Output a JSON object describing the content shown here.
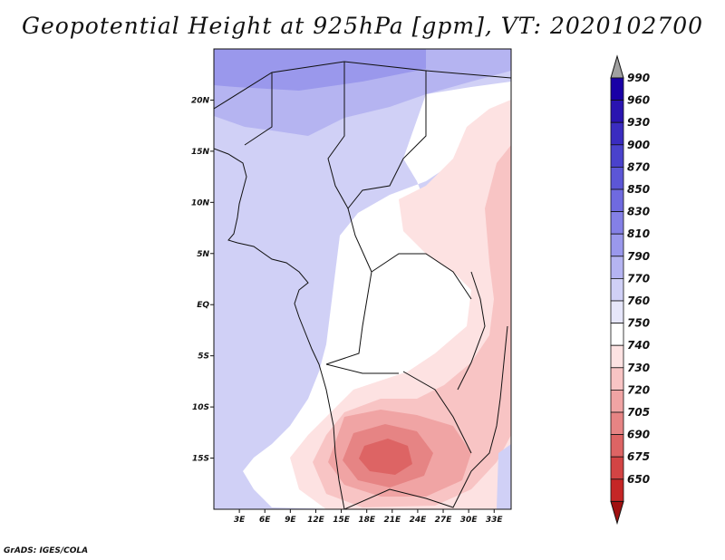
{
  "title": "Geopotential Height at 925hPa [gpm], VT: 2020102700",
  "credit": "GrADS: IGES/COLA",
  "map": {
    "lat_labels": [
      "20N",
      "15N",
      "10N",
      "5N",
      "EQ",
      "5S",
      "10S",
      "15S"
    ],
    "lon_labels": [
      "3E",
      "6E",
      "9E",
      "12E",
      "15E",
      "18E",
      "21E",
      "24E",
      "27E",
      "30E",
      "33E"
    ],
    "lon_range": [
      0,
      35
    ],
    "lat_range": [
      -20,
      25
    ]
  },
  "colorbar": {
    "levels": [
      "990",
      "960",
      "930",
      "900",
      "870",
      "850",
      "830",
      "810",
      "790",
      "770",
      "760",
      "750",
      "740",
      "730",
      "720",
      "705",
      "690",
      "675",
      "650"
    ],
    "colors": [
      "#1a00a6",
      "#2a14b0",
      "#3a2cc0",
      "#4a42cc",
      "#5c56d6",
      "#6f6adf",
      "#8480e6",
      "#9a98ec",
      "#b5b4f1",
      "#d0d0f6",
      "#e6e6fa",
      "#ffffff",
      "#fde2e2",
      "#f8c4c4",
      "#f0a4a4",
      "#e68484",
      "#dd6464",
      "#d34444",
      "#c52626",
      "#b01010"
    ],
    "top_arrow_color": "#a0a0a0",
    "bottom_arrow_color": "#a01010"
  }
}
